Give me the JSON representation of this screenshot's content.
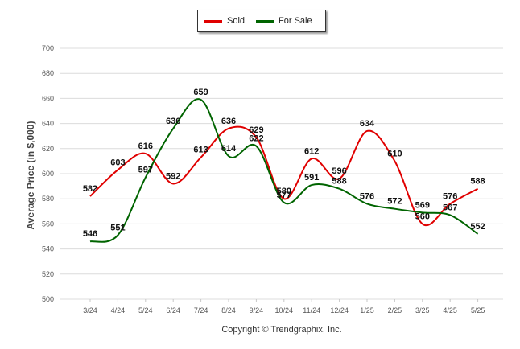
{
  "chart_data": {
    "type": "line",
    "categories": [
      "3/24",
      "4/24",
      "5/24",
      "6/24",
      "7/24",
      "8/24",
      "9/24",
      "10/24",
      "11/24",
      "12/24",
      "1/25",
      "2/25",
      "3/25",
      "4/25",
      "5/25"
    ],
    "series": [
      {
        "name": "Sold",
        "color": "#e00000",
        "values": [
          582,
          603,
          616,
          592,
          613,
          636,
          629,
          580,
          612,
          596,
          634,
          610,
          560,
          576,
          588
        ]
      },
      {
        "name": "For Sale",
        "color": "#006400",
        "values": [
          546,
          551,
          597,
          636,
          659,
          614,
          622,
          577,
          591,
          588,
          576,
          572,
          569,
          567,
          552
        ]
      }
    ],
    "ylabel": "Average Price (in $,000)",
    "ylim": [
      500,
      700
    ],
    "yticks": [
      500,
      520,
      540,
      560,
      580,
      600,
      620,
      640,
      660,
      680,
      700
    ],
    "grid": true,
    "legend_position": "top-center"
  },
  "legend": {
    "sold_label": "Sold",
    "for_sale_label": "For Sale"
  },
  "footer": {
    "copyright": "Copyright © Trendgraphix, Inc."
  }
}
